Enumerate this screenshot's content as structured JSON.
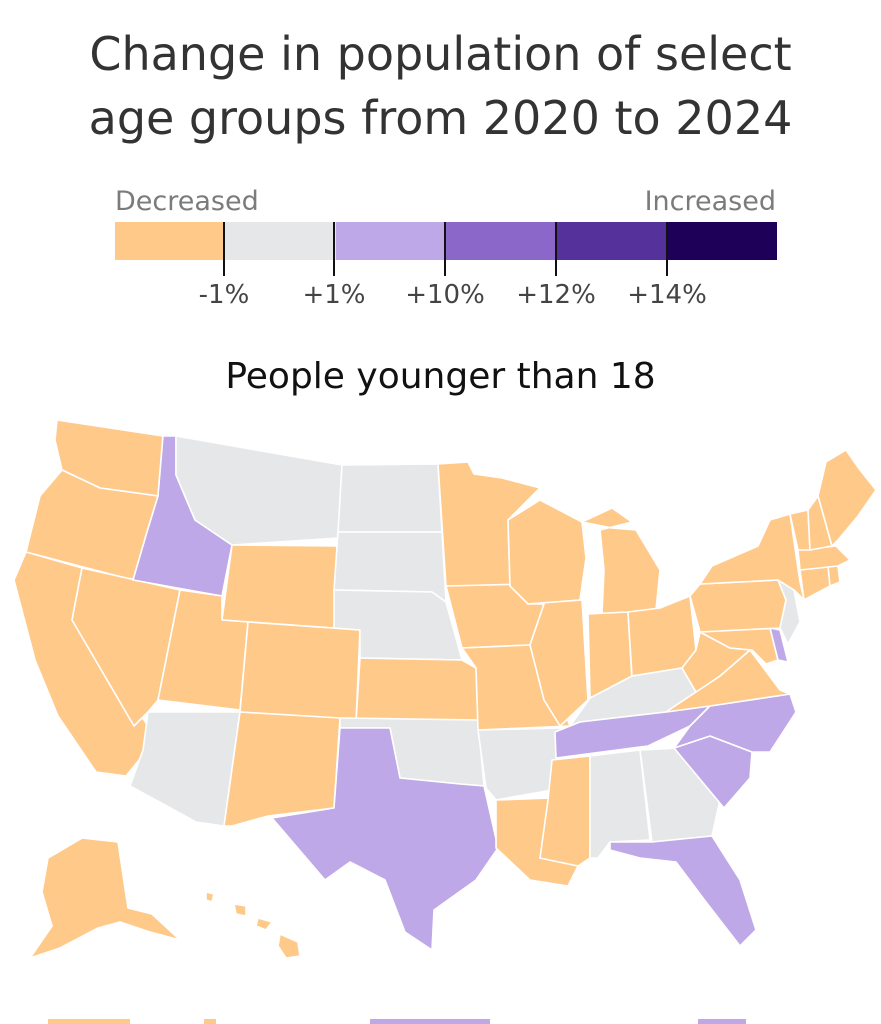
{
  "title_lines": [
    "Change in population of select",
    "age groups from 2020 to 2024"
  ],
  "legend": {
    "low_label": "Decreased",
    "high_label": "Increased",
    "colors": [
      "#ffc98a",
      "#e6e7e8",
      "#bea8e7",
      "#8a67c9",
      "#55329b",
      "#1f0059"
    ],
    "ticks": [
      "-1%",
      "+1%",
      "+10%",
      "+12%",
      "+14%"
    ]
  },
  "map_title": "People younger than 18",
  "states": {
    "decreased": [
      "WA",
      "OR",
      "CA",
      "NV",
      "UT",
      "WY",
      "CO",
      "NM",
      "KS",
      "MN",
      "WI",
      "IA",
      "MO",
      "IL",
      "MI",
      "IN",
      "OH",
      "PA",
      "NY",
      "VT",
      "NH",
      "ME",
      "MA",
      "CT",
      "RI",
      "WV",
      "VA",
      "MD",
      "LA",
      "MS",
      "AK",
      "HI"
    ],
    "little_change": [
      "MT",
      "ND",
      "SD",
      "NE",
      "OK",
      "AR",
      "KY",
      "AL",
      "GA",
      "AZ",
      "NJ"
    ],
    "increased": [
      "ID",
      "TX",
      "TN",
      "NC",
      "SC",
      "FL",
      "DE"
    ]
  }
}
